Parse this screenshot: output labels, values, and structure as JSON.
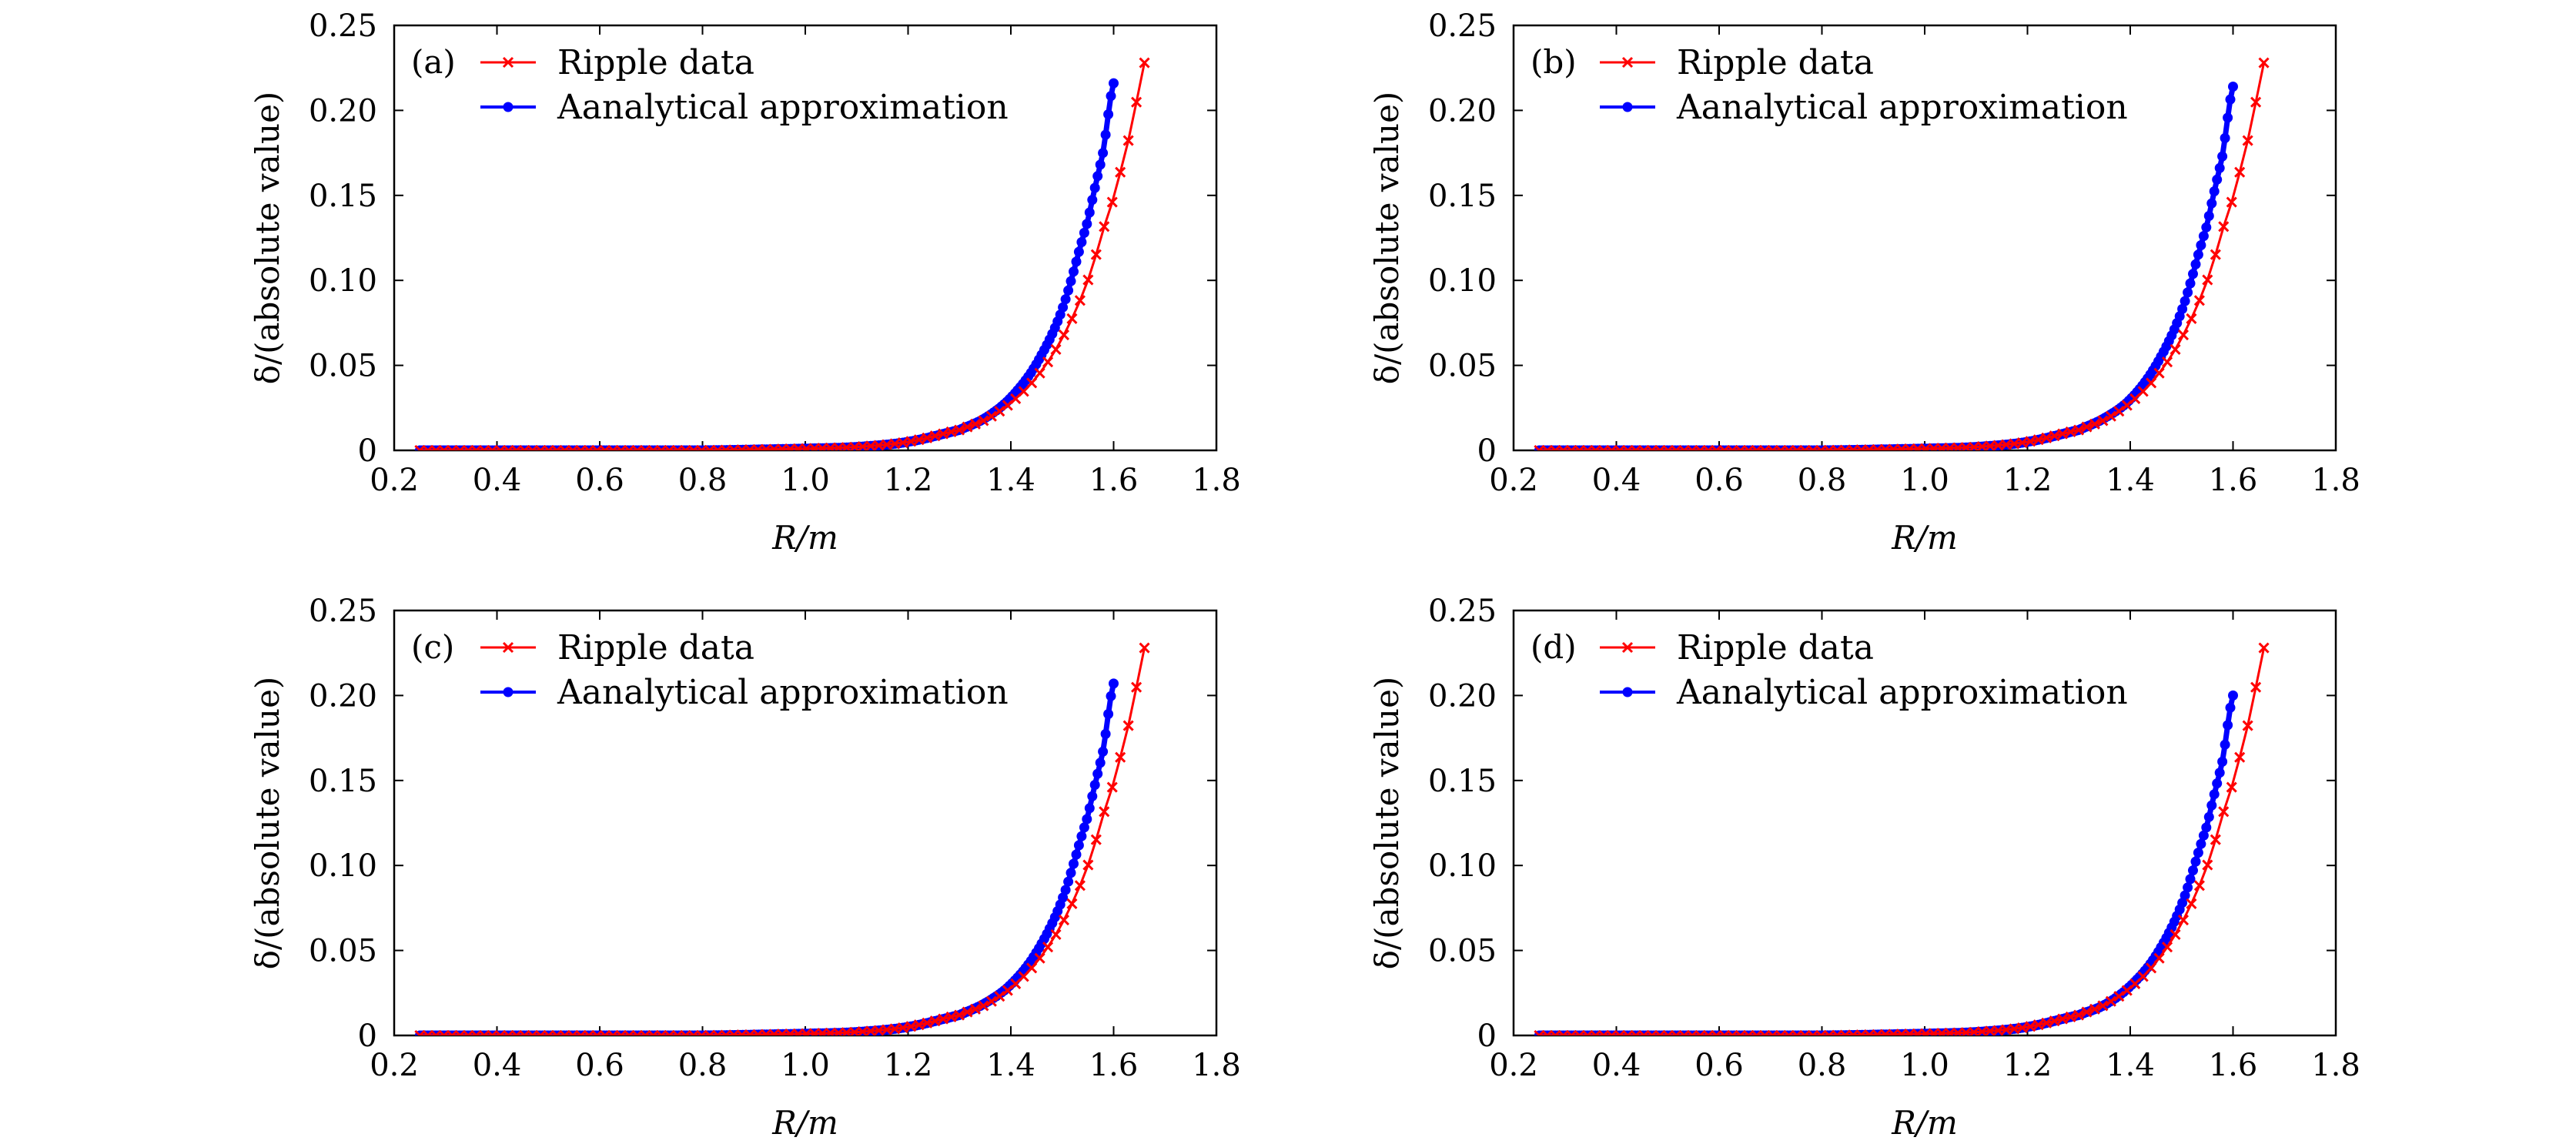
{
  "chart_data": [
    {
      "type": "line",
      "label": "(a)",
      "xlabel": "R/m",
      "ylabel": "δ/(absolute value)",
      "xlim": [
        0.2,
        1.8
      ],
      "ylim": [
        0,
        0.25
      ],
      "xticks": [
        "0.2",
        "0.4",
        "0.6",
        "0.8",
        "1.0",
        "1.2",
        "1.4",
        "1.6",
        "1.8"
      ],
      "yticks": [
        "0",
        "0.05",
        "0.10",
        "0.15",
        "0.20",
        "0.25"
      ],
      "legend_position": "top-left",
      "series": [
        {
          "name": "Ripple data",
          "color": "#ff0000",
          "marker": "x",
          "x": [
            0.25,
            0.4,
            0.6,
            0.8,
            1.0,
            1.1,
            1.2,
            1.3,
            1.35,
            1.4,
            1.45,
            1.5,
            1.55,
            1.6,
            1.62,
            1.64,
            1.66
          ],
          "y": [
            0,
            0,
            0,
            0,
            0.001,
            0.002,
            0.005,
            0.012,
            0.018,
            0.028,
            0.043,
            0.066,
            0.1,
            0.148,
            0.171,
            0.198,
            0.228
          ]
        },
        {
          "name": "Aanalytical approximation",
          "color": "#0000ff",
          "marker": "dot",
          "x": [
            0.25,
            0.4,
            0.6,
            0.8,
            1.0,
            1.1,
            1.2,
            1.3,
            1.35,
            1.4,
            1.45,
            1.5,
            1.55,
            1.58,
            1.6
          ],
          "y": [
            0,
            0,
            0,
            0,
            0.001,
            0.002,
            0.005,
            0.012,
            0.019,
            0.031,
            0.051,
            0.083,
            0.135,
            0.176,
            0.216
          ]
        }
      ]
    },
    {
      "type": "line",
      "label": "(b)",
      "xlabel": "R/m",
      "ylabel": "δ/(absolute value)",
      "xlim": [
        0.2,
        1.8
      ],
      "ylim": [
        0,
        0.25
      ],
      "xticks": [
        "0.2",
        "0.4",
        "0.6",
        "0.8",
        "1.0",
        "1.2",
        "1.4",
        "1.6",
        "1.8"
      ],
      "yticks": [
        "0",
        "0.05",
        "0.10",
        "0.15",
        "0.20",
        "0.25"
      ],
      "legend_position": "top-left",
      "series": [
        {
          "name": "Ripple data",
          "color": "#ff0000",
          "marker": "x",
          "x": [
            0.25,
            0.4,
            0.6,
            0.8,
            1.0,
            1.1,
            1.2,
            1.3,
            1.35,
            1.4,
            1.45,
            1.5,
            1.55,
            1.6,
            1.62,
            1.64,
            1.66
          ],
          "y": [
            0,
            0,
            0,
            0,
            0.001,
            0.002,
            0.005,
            0.012,
            0.018,
            0.028,
            0.043,
            0.066,
            0.1,
            0.148,
            0.171,
            0.198,
            0.228
          ]
        },
        {
          "name": "Aanalytical approximation",
          "color": "#0000ff",
          "marker": "dot",
          "x": [
            0.25,
            0.4,
            0.6,
            0.8,
            1.0,
            1.1,
            1.2,
            1.3,
            1.35,
            1.4,
            1.45,
            1.5,
            1.55,
            1.58,
            1.6
          ],
          "y": [
            0,
            0,
            0,
            0,
            0.001,
            0.002,
            0.005,
            0.012,
            0.019,
            0.03,
            0.05,
            0.082,
            0.133,
            0.174,
            0.214
          ]
        }
      ]
    },
    {
      "type": "line",
      "label": "(c)",
      "xlabel": "R/m",
      "ylabel": "δ/(absolute value)",
      "xlim": [
        0.2,
        1.8
      ],
      "ylim": [
        0,
        0.25
      ],
      "xticks": [
        "0.2",
        "0.4",
        "0.6",
        "0.8",
        "1.0",
        "1.2",
        "1.4",
        "1.6",
        "1.8"
      ],
      "yticks": [
        "0",
        "0.05",
        "0.10",
        "0.15",
        "0.20",
        "0.25"
      ],
      "legend_position": "top-left",
      "series": [
        {
          "name": "Ripple data",
          "color": "#ff0000",
          "marker": "x",
          "x": [
            0.25,
            0.4,
            0.6,
            0.8,
            1.0,
            1.1,
            1.2,
            1.3,
            1.35,
            1.4,
            1.45,
            1.5,
            1.55,
            1.6,
            1.62,
            1.64,
            1.66
          ],
          "y": [
            0,
            0,
            0,
            0,
            0.001,
            0.002,
            0.005,
            0.012,
            0.018,
            0.028,
            0.043,
            0.066,
            0.1,
            0.148,
            0.171,
            0.198,
            0.228
          ]
        },
        {
          "name": "Aanalytical approximation",
          "color": "#0000ff",
          "marker": "dot",
          "x": [
            0.25,
            0.4,
            0.6,
            0.8,
            1.0,
            1.1,
            1.2,
            1.3,
            1.35,
            1.4,
            1.45,
            1.5,
            1.55,
            1.58,
            1.6
          ],
          "y": [
            0,
            0,
            0,
            0,
            0.001,
            0.002,
            0.005,
            0.012,
            0.019,
            0.03,
            0.049,
            0.08,
            0.129,
            0.168,
            0.207
          ]
        }
      ]
    },
    {
      "type": "line",
      "label": "(d)",
      "xlabel": "R/m",
      "ylabel": "δ/(absolute value)",
      "xlim": [
        0.2,
        1.8
      ],
      "ylim": [
        0,
        0.25
      ],
      "xticks": [
        "0.2",
        "0.4",
        "0.6",
        "0.8",
        "1.0",
        "1.2",
        "1.4",
        "1.6",
        "1.8"
      ],
      "yticks": [
        "0",
        "0.05",
        "0.10",
        "0.15",
        "0.20",
        "0.25"
      ],
      "legend_position": "top-left",
      "series": [
        {
          "name": "Ripple data",
          "color": "#ff0000",
          "marker": "x",
          "x": [
            0.25,
            0.4,
            0.6,
            0.8,
            1.0,
            1.1,
            1.2,
            1.3,
            1.35,
            1.4,
            1.45,
            1.5,
            1.55,
            1.6,
            1.62,
            1.64,
            1.66
          ],
          "y": [
            0,
            0,
            0,
            0,
            0.001,
            0.002,
            0.005,
            0.012,
            0.018,
            0.028,
            0.043,
            0.066,
            0.1,
            0.148,
            0.171,
            0.198,
            0.228
          ]
        },
        {
          "name": "Aanalytical approximation",
          "color": "#0000ff",
          "marker": "dot",
          "x": [
            0.25,
            0.4,
            0.6,
            0.8,
            1.0,
            1.1,
            1.2,
            1.3,
            1.35,
            1.4,
            1.45,
            1.5,
            1.55,
            1.58,
            1.6
          ],
          "y": [
            0,
            0,
            0,
            0,
            0.001,
            0.002,
            0.005,
            0.012,
            0.018,
            0.029,
            0.047,
            0.077,
            0.124,
            0.162,
            0.2
          ]
        }
      ]
    }
  ]
}
